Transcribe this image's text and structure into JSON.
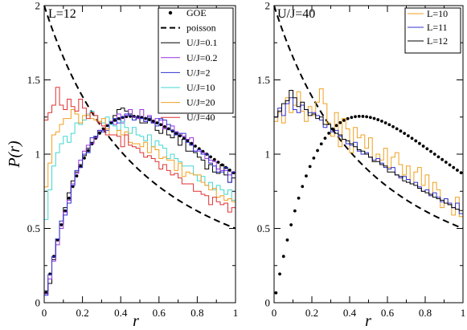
{
  "chart_data": [
    {
      "type": "line",
      "annotation": "L=12",
      "xlabel": "r",
      "ylabel": "P(r)",
      "xlim": [
        0,
        1
      ],
      "ylim": [
        0,
        2
      ],
      "x_ticks": [
        "0",
        "0.2",
        "0.4",
        "0.6",
        "0.8",
        "1"
      ],
      "y_ticks": [
        "0",
        "0.5",
        "1",
        "1.5",
        "2"
      ],
      "legend_position": "top-right",
      "bins": 50,
      "series": [
        {
          "name": "GOE",
          "style": "dots",
          "color": "#000000",
          "source": "GOE"
        },
        {
          "name": "poisson",
          "style": "dashed",
          "color": "#000000",
          "source": "poisson"
        },
        {
          "name": "U/J=0.1",
          "style": "step",
          "color": "#000000",
          "values": [
            0.08,
            0.13,
            0.29,
            0.43,
            0.53,
            0.64,
            0.74,
            0.82,
            0.88,
            0.93,
            0.99,
            1.04,
            1.08,
            1.12,
            1.15,
            1.16,
            1.2,
            1.22,
            1.26,
            1.3,
            1.31,
            1.29,
            1.27,
            1.23,
            1.24,
            1.21,
            1.21,
            1.24,
            1.21,
            1.16,
            1.14,
            1.18,
            1.13,
            1.11,
            1.15,
            1.06,
            1.1,
            1.02,
            1.02,
            1.01,
            0.98,
            0.96,
            0.9,
            0.93,
            0.88,
            0.87,
            0.93,
            0.86,
            0.81,
            0.84
          ]
        },
        {
          "name": "U/J=0.2",
          "style": "step",
          "color": "#9b30e0",
          "values": [
            0.06,
            0.16,
            0.28,
            0.39,
            0.5,
            0.61,
            0.69,
            0.8,
            0.87,
            0.96,
            1.02,
            1.06,
            1.07,
            1.11,
            1.16,
            1.16,
            1.2,
            1.22,
            1.2,
            1.27,
            1.21,
            1.26,
            1.3,
            1.25,
            1.24,
            1.3,
            1.22,
            1.26,
            1.21,
            1.24,
            1.23,
            1.17,
            1.2,
            1.19,
            1.15,
            1.14,
            1.12,
            1.1,
            1.11,
            1.02,
            1.02,
            1.01,
            0.97,
            0.96,
            0.95,
            0.9,
            0.89,
            0.89,
            0.86,
            0.88
          ]
        },
        {
          "name": "U/J=2",
          "style": "step",
          "color": "#3030d0",
          "values": [
            0.05,
            0.19,
            0.31,
            0.43,
            0.55,
            0.59,
            0.67,
            0.79,
            0.89,
            0.91,
            1.0,
            1.01,
            1.11,
            1.12,
            1.16,
            1.15,
            1.16,
            1.2,
            1.24,
            1.21,
            1.25,
            1.27,
            1.26,
            1.23,
            1.25,
            1.24,
            1.22,
            1.25,
            1.21,
            1.19,
            1.24,
            1.23,
            1.2,
            1.16,
            1.13,
            1.14,
            1.14,
            1.08,
            1.06,
            1.02,
            1.03,
            1.0,
            1.0,
            0.94,
            0.92,
            0.88,
            0.88,
            0.91,
            0.81,
            0.88
          ]
        },
        {
          "name": "U/J=10",
          "style": "step",
          "color": "#40d8d0",
          "values": [
            0.56,
            0.76,
            0.92,
            1.01,
            1.07,
            1.12,
            1.08,
            1.14,
            1.21,
            1.2,
            1.23,
            1.27,
            1.29,
            1.26,
            1.22,
            1.21,
            1.25,
            1.2,
            1.19,
            1.16,
            1.22,
            1.18,
            1.14,
            1.18,
            1.13,
            1.12,
            1.09,
            1.13,
            1.05,
            1.09,
            1.06,
            1.04,
            0.97,
            1.0,
            0.97,
            0.95,
            0.92,
            0.92,
            0.92,
            0.86,
            0.82,
            0.85,
            0.79,
            0.81,
            0.76,
            0.79,
            0.76,
            0.73,
            0.76,
            0.69
          ]
        },
        {
          "name": "U/J=20",
          "style": "step",
          "color": "#f0a020",
          "values": [
            0.78,
            0.94,
            1.13,
            1.15,
            1.2,
            1.24,
            1.24,
            1.3,
            1.27,
            1.21,
            1.26,
            1.26,
            1.24,
            1.23,
            1.22,
            1.24,
            1.17,
            1.13,
            1.13,
            1.16,
            1.13,
            1.15,
            1.08,
            1.07,
            1.07,
            1.05,
            1.08,
            1.01,
            1.05,
            1.03,
            0.97,
            0.98,
            0.96,
            0.96,
            0.89,
            0.94,
            0.85,
            0.88,
            0.87,
            0.86,
            0.86,
            0.81,
            0.79,
            0.76,
            0.77,
            0.71,
            0.72,
            0.69,
            0.7,
            0.68
          ]
        },
        {
          "name": "U/J=40",
          "style": "step",
          "color": "#e03030",
          "values": [
            1.23,
            1.28,
            1.33,
            1.45,
            1.33,
            1.3,
            1.37,
            1.32,
            1.29,
            1.37,
            1.31,
            1.24,
            1.28,
            1.26,
            1.21,
            1.19,
            1.13,
            1.13,
            1.13,
            1.12,
            1.05,
            1.13,
            1.06,
            1.05,
            1.04,
            1.01,
            0.98,
            0.99,
            0.97,
            0.95,
            0.9,
            0.93,
            0.89,
            0.86,
            0.87,
            0.84,
            0.8,
            0.8,
            0.8,
            0.75,
            0.75,
            0.73,
            0.72,
            0.66,
            0.71,
            0.68,
            0.66,
            0.67,
            0.61,
            0.64
          ]
        }
      ]
    },
    {
      "type": "line",
      "annotation": "U/J=40",
      "xlabel": "r",
      "ylabel": "",
      "xlim": [
        0,
        1
      ],
      "ylim": [
        0,
        2
      ],
      "x_ticks": [
        "0",
        "0.2",
        "0.4",
        "0.6",
        "0.8",
        "1"
      ],
      "y_ticks": [
        "0",
        "0.5",
        "1",
        "1.5",
        "2"
      ],
      "legend_position": "top-right",
      "bins": 50,
      "series": [
        {
          "name": "",
          "style": "dots",
          "color": "#000000",
          "source": "GOE"
        },
        {
          "name": "",
          "style": "dashed",
          "color": "#000000",
          "source": "poisson"
        },
        {
          "name": "L=10",
          "style": "step",
          "color": "#f0a020",
          "values": [
            1.22,
            1.28,
            1.21,
            1.38,
            1.28,
            1.33,
            1.42,
            1.29,
            1.22,
            1.32,
            1.26,
            1.35,
            1.44,
            1.34,
            1.21,
            1.12,
            1.28,
            1.05,
            1.24,
            1.17,
            1.01,
            1.18,
            1.11,
            1.13,
            1.04,
            1.11,
            0.95,
            1.0,
            0.96,
            1.04,
            0.91,
            0.98,
            1.01,
            0.93,
            0.86,
            0.92,
            0.8,
            0.88,
            0.91,
            0.79,
            0.86,
            0.72,
            0.81,
            0.76,
            0.64,
            0.7,
            0.66,
            0.59,
            0.71,
            0.58
          ]
        },
        {
          "name": "L=11",
          "style": "step",
          "color": "#3030d0",
          "values": [
            1.25,
            1.31,
            1.26,
            1.34,
            1.38,
            1.3,
            1.28,
            1.33,
            1.3,
            1.28,
            1.28,
            1.26,
            1.23,
            1.18,
            1.2,
            1.15,
            1.16,
            1.12,
            1.1,
            1.07,
            1.06,
            1.08,
            1.02,
            1.0,
            1.01,
            0.98,
            0.96,
            0.97,
            0.94,
            0.91,
            0.9,
            0.91,
            0.86,
            0.84,
            0.85,
            0.83,
            0.8,
            0.81,
            0.78,
            0.75,
            0.76,
            0.72,
            0.74,
            0.71,
            0.68,
            0.7,
            0.67,
            0.64,
            0.67,
            0.6
          ]
        },
        {
          "name": "L=12",
          "style": "step",
          "color": "#000000",
          "values": [
            1.25,
            1.29,
            1.34,
            1.36,
            1.43,
            1.38,
            1.32,
            1.35,
            1.3,
            1.26,
            1.27,
            1.24,
            1.25,
            1.2,
            1.2,
            1.17,
            1.14,
            1.13,
            1.1,
            1.09,
            1.07,
            1.05,
            1.03,
            1.02,
            1.0,
            0.98,
            0.95,
            0.95,
            0.93,
            0.92,
            0.88,
            0.88,
            0.86,
            0.85,
            0.82,
            0.81,
            0.8,
            0.79,
            0.77,
            0.75,
            0.74,
            0.73,
            0.71,
            0.7,
            0.69,
            0.67,
            0.66,
            0.64,
            0.63,
            0.62
          ]
        }
      ]
    }
  ]
}
